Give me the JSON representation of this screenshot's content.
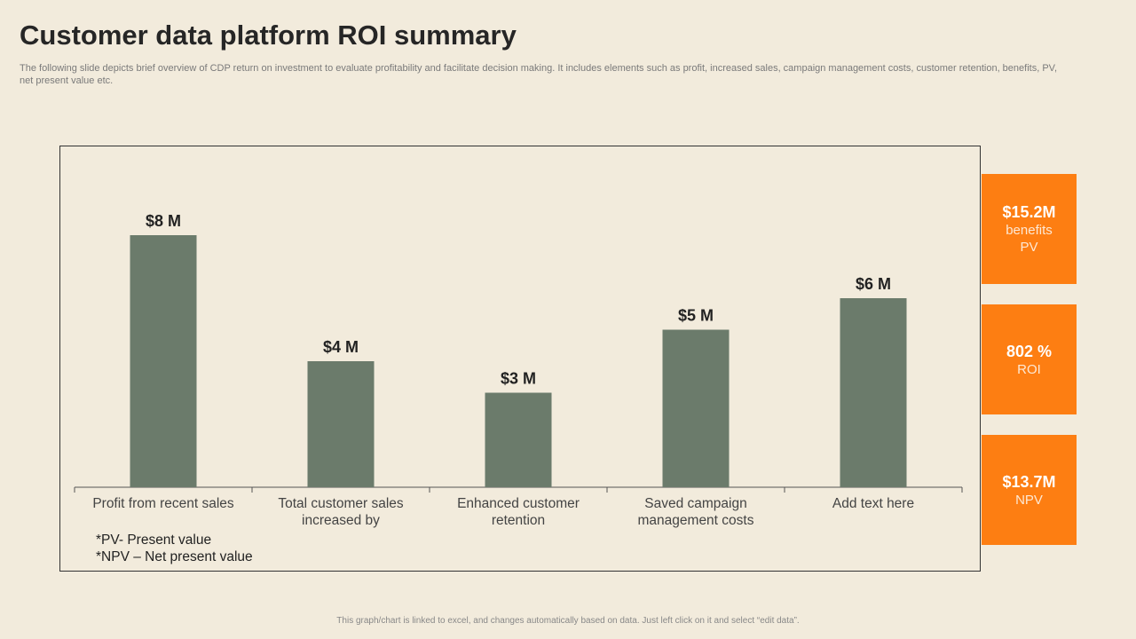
{
  "title": "Customer data platform ROI summary",
  "subtitle": "The following slide depicts brief overview of CDP return on investment to evaluate profitability and facilitate decision making. It includes elements such as profit, increased sales, campaign management costs, customer retention, benefits, PV,  net present value etc.",
  "chart_data": {
    "type": "bar",
    "title": "",
    "xlabel": "",
    "ylabel": "",
    "ylim": [
      0,
      8
    ],
    "categories": [
      [
        "Profit from recent sales"
      ],
      [
        "Total customer sales",
        "increased by"
      ],
      [
        "Enhanced customer",
        "retention"
      ],
      [
        "Saved campaign",
        "management costs"
      ],
      [
        "Add text here"
      ]
    ],
    "values": [
      8,
      4,
      3,
      5,
      6
    ],
    "data_labels": [
      "$8 M",
      "$4 M",
      "$3 M",
      "$5 M",
      "$6 M"
    ],
    "bar_color": "#6b7b6b"
  },
  "notes": {
    "pv": "*PV- Present value",
    "npv": "*NPV – Net present value"
  },
  "kpis": [
    {
      "value": "$15.2M",
      "label1": "benefits",
      "label2": "PV"
    },
    {
      "value": "802 %",
      "label1": "ROI",
      "label2": ""
    },
    {
      "value": "$13.7M",
      "label1": "NPV",
      "label2": ""
    }
  ],
  "accent_color": "#fd7e12",
  "footer": "This graph/chart is linked to excel, and changes automatically based on data. Just left click on it and select “edit data”."
}
